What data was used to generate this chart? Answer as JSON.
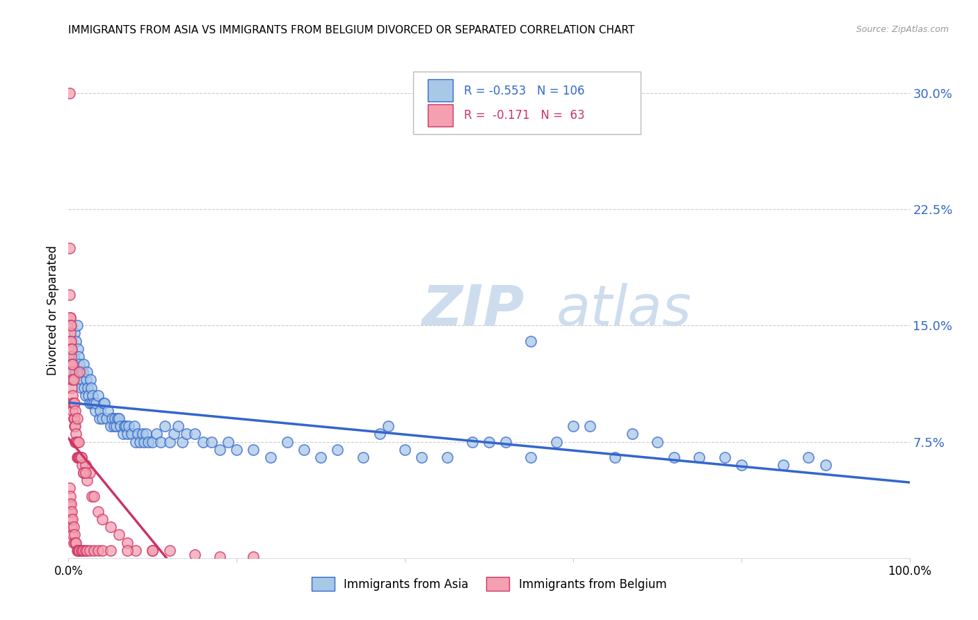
{
  "title": "IMMIGRANTS FROM ASIA VS IMMIGRANTS FROM BELGIUM DIVORCED OR SEPARATED CORRELATION CHART",
  "source": "Source: ZipAtlas.com",
  "ylabel": "Divorced or Separated",
  "yticks": [
    "7.5%",
    "15.0%",
    "22.5%",
    "30.0%"
  ],
  "ytick_vals": [
    0.075,
    0.15,
    0.225,
    0.3
  ],
  "xlim": [
    0.0,
    1.0
  ],
  "ylim": [
    0.0,
    0.32
  ],
  "legend_blue_r": "-0.553",
  "legend_blue_n": "106",
  "legend_pink_r": "-0.171",
  "legend_pink_n": "63",
  "color_blue": "#a8c8e8",
  "color_pink": "#f4a0b0",
  "trendline_blue": "#3366cc",
  "trendline_pink": "#cc3366",
  "blue_scatter_x": [
    0.002,
    0.003,
    0.004,
    0.005,
    0.006,
    0.007,
    0.008,
    0.009,
    0.01,
    0.011,
    0.012,
    0.013,
    0.014,
    0.015,
    0.016,
    0.017,
    0.018,
    0.019,
    0.02,
    0.021,
    0.022,
    0.023,
    0.024,
    0.025,
    0.026,
    0.027,
    0.028,
    0.029,
    0.03,
    0.032,
    0.033,
    0.035,
    0.037,
    0.038,
    0.04,
    0.042,
    0.043,
    0.045,
    0.047,
    0.05,
    0.052,
    0.054,
    0.055,
    0.057,
    0.058,
    0.06,
    0.062,
    0.065,
    0.067,
    0.068,
    0.07,
    0.072,
    0.075,
    0.078,
    0.08,
    0.082,
    0.085,
    0.088,
    0.09,
    0.092,
    0.095,
    0.1,
    0.105,
    0.11,
    0.115,
    0.12,
    0.125,
    0.13,
    0.135,
    0.14,
    0.15,
    0.16,
    0.17,
    0.18,
    0.19,
    0.2,
    0.22,
    0.24,
    0.26,
    0.28,
    0.3,
    0.32,
    0.35,
    0.37,
    0.4,
    0.42,
    0.45,
    0.48,
    0.5,
    0.52,
    0.55,
    0.58,
    0.6,
    0.62,
    0.65,
    0.67,
    0.7,
    0.72,
    0.75,
    0.78,
    0.8,
    0.85,
    0.88,
    0.9,
    0.55,
    0.38
  ],
  "blue_scatter_y": [
    0.13,
    0.125,
    0.12,
    0.115,
    0.13,
    0.145,
    0.12,
    0.14,
    0.15,
    0.135,
    0.13,
    0.125,
    0.12,
    0.11,
    0.115,
    0.12,
    0.125,
    0.11,
    0.105,
    0.115,
    0.12,
    0.11,
    0.105,
    0.1,
    0.115,
    0.11,
    0.1,
    0.105,
    0.1,
    0.095,
    0.1,
    0.105,
    0.09,
    0.095,
    0.09,
    0.1,
    0.1,
    0.09,
    0.095,
    0.085,
    0.09,
    0.085,
    0.09,
    0.085,
    0.09,
    0.09,
    0.085,
    0.08,
    0.085,
    0.085,
    0.08,
    0.085,
    0.08,
    0.085,
    0.075,
    0.08,
    0.075,
    0.08,
    0.075,
    0.08,
    0.075,
    0.075,
    0.08,
    0.075,
    0.085,
    0.075,
    0.08,
    0.085,
    0.075,
    0.08,
    0.08,
    0.075,
    0.075,
    0.07,
    0.075,
    0.07,
    0.07,
    0.065,
    0.075,
    0.07,
    0.065,
    0.07,
    0.065,
    0.08,
    0.07,
    0.065,
    0.065,
    0.075,
    0.075,
    0.075,
    0.065,
    0.075,
    0.085,
    0.085,
    0.065,
    0.08,
    0.075,
    0.065,
    0.065,
    0.065,
    0.06,
    0.06,
    0.065,
    0.06,
    0.14,
    0.085
  ],
  "pink_scatter_x": [
    0.001,
    0.001,
    0.001,
    0.002,
    0.002,
    0.002,
    0.002,
    0.002,
    0.003,
    0.003,
    0.003,
    0.003,
    0.004,
    0.004,
    0.004,
    0.004,
    0.005,
    0.005,
    0.005,
    0.005,
    0.005,
    0.006,
    0.006,
    0.006,
    0.007,
    0.007,
    0.007,
    0.008,
    0.008,
    0.008,
    0.009,
    0.009,
    0.01,
    0.01,
    0.01,
    0.011,
    0.012,
    0.012,
    0.013,
    0.014,
    0.015,
    0.016,
    0.018,
    0.02,
    0.022,
    0.025,
    0.028,
    0.03,
    0.035,
    0.04,
    0.05,
    0.06,
    0.07,
    0.08,
    0.1,
    0.12,
    0.15,
    0.18,
    0.22,
    0.013,
    0.015,
    0.018,
    0.02
  ],
  "pink_scatter_y": [
    0.3,
    0.2,
    0.17,
    0.155,
    0.155,
    0.15,
    0.145,
    0.14,
    0.15,
    0.14,
    0.135,
    0.13,
    0.135,
    0.125,
    0.12,
    0.11,
    0.125,
    0.115,
    0.105,
    0.1,
    0.095,
    0.115,
    0.1,
    0.09,
    0.1,
    0.09,
    0.085,
    0.095,
    0.085,
    0.075,
    0.08,
    0.075,
    0.09,
    0.075,
    0.065,
    0.065,
    0.075,
    0.065,
    0.065,
    0.065,
    0.065,
    0.06,
    0.055,
    0.06,
    0.05,
    0.055,
    0.04,
    0.04,
    0.03,
    0.025,
    0.02,
    0.015,
    0.01,
    0.005,
    0.005,
    0.005,
    0.002,
    0.001,
    0.001,
    0.12,
    0.065,
    0.055,
    0.055
  ],
  "pink_low_x": [
    0.001,
    0.001,
    0.002,
    0.002,
    0.003,
    0.003,
    0.004,
    0.004,
    0.005,
    0.005,
    0.006,
    0.006,
    0.007,
    0.008,
    0.009,
    0.01,
    0.011,
    0.012,
    0.013,
    0.015,
    0.016,
    0.018,
    0.02,
    0.022,
    0.025,
    0.03,
    0.035,
    0.04,
    0.05,
    0.07,
    0.1
  ],
  "pink_low_y": [
    0.045,
    0.035,
    0.04,
    0.03,
    0.035,
    0.025,
    0.03,
    0.02,
    0.025,
    0.015,
    0.02,
    0.01,
    0.015,
    0.01,
    0.01,
    0.005,
    0.005,
    0.005,
    0.005,
    0.005,
    0.005,
    0.005,
    0.005,
    0.005,
    0.005,
    0.005,
    0.005,
    0.005,
    0.005,
    0.005,
    0.005
  ]
}
